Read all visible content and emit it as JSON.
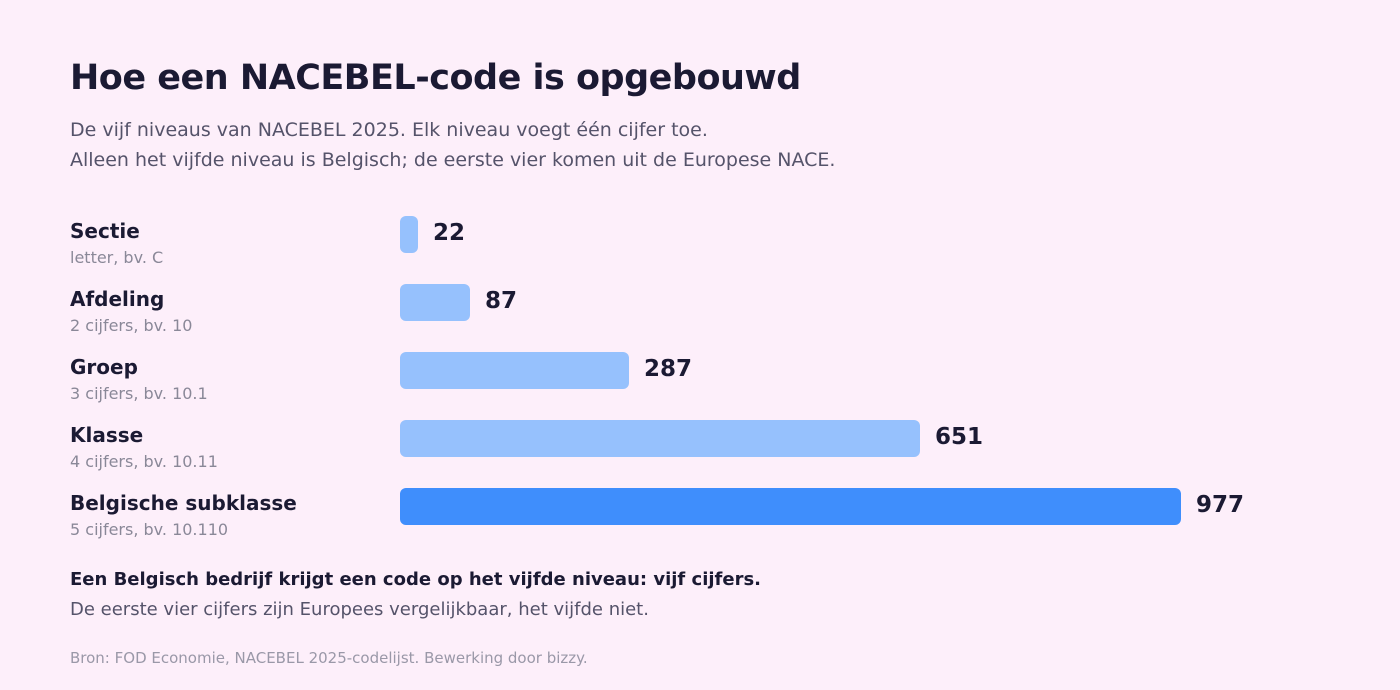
{
  "title": "Hoe een NACEBEL-code is opgebouwd",
  "subtitle_line1": "De vijf niveaus van NACEBEL 2025. Elk niveau voegt één cijfer toe.",
  "subtitle_line2": "Alleen het vijfde niveau is Belgisch; de eerste vier komen uit de Europese NACE.",
  "chart_data": {
    "type": "bar",
    "orientation": "horizontal",
    "categories": [
      "Sectie",
      "Afdeling",
      "Groep",
      "Klasse",
      "Belgische subklasse"
    ],
    "category_details": [
      "letter, bv. C",
      "2 cijfers, bv. 10",
      "3 cijfers, bv. 10.1",
      "4 cijfers, bv. 10.11",
      "5 cijfers, bv. 10.110"
    ],
    "values": [
      22,
      87,
      287,
      651,
      977
    ],
    "value_labels": [
      "22",
      "87",
      "287",
      "651",
      "977"
    ],
    "highlight_index": 4,
    "xlim": [
      0,
      977
    ],
    "grid": false,
    "colors": {
      "default": "#96c1fd",
      "highlight": "#3f8efc"
    }
  },
  "note_bold": "Een Belgisch bedrijf krijgt een code op het vijfde niveau: vijf cijfers.",
  "note": "De eerste vier cijfers zijn Europees vergelijkbaar, het vijfde niet.",
  "source": "Bron: FOD Economie, NACEBEL 2025-codelijst. Bewerking door bizzy."
}
